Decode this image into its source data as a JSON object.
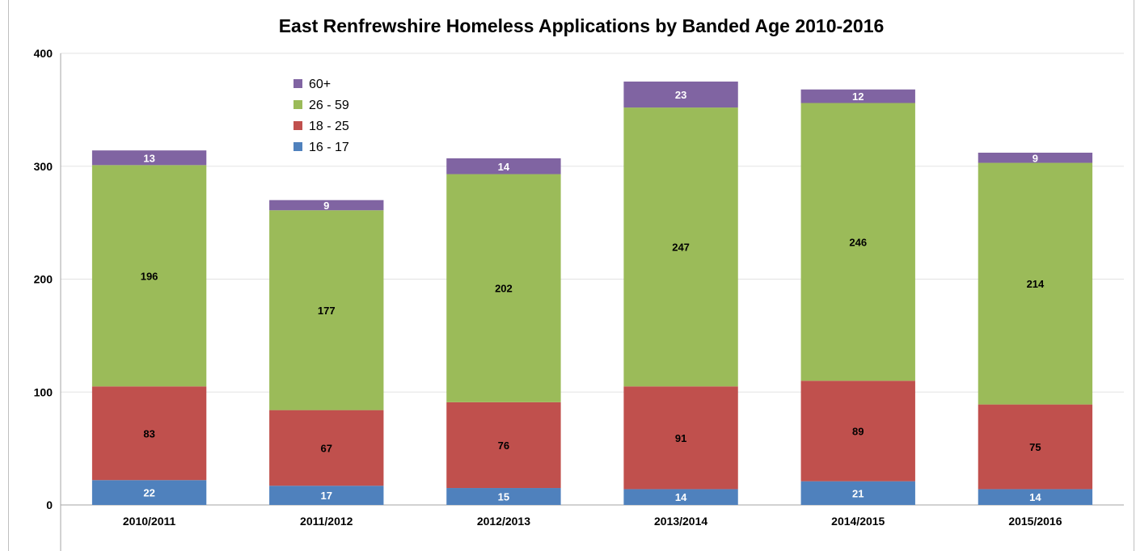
{
  "chart_data": {
    "type": "bar",
    "stacked": true,
    "title": "East Renfrewshire Homeless Applications by Banded Age 2010-2016",
    "xlabel": "",
    "ylabel": "",
    "ylim": [
      0,
      400
    ],
    "y_ticks": [
      0,
      100,
      200,
      300,
      400
    ],
    "grid": true,
    "legend_position": "top-left",
    "categories": [
      "2010/2011",
      "2011/2012",
      "2012/2013",
      "2013/2014",
      "2014/2015",
      "2015/2016"
    ],
    "series": [
      {
        "name": "16 - 17",
        "color": "#4f81bd",
        "label_color": "#ffffff",
        "values": [
          22,
          17,
          15,
          14,
          21,
          14
        ]
      },
      {
        "name": "18 - 25",
        "color": "#c0504d",
        "label_color": "#000000",
        "values": [
          83,
          67,
          76,
          91,
          89,
          75
        ]
      },
      {
        "name": "26 - 59",
        "color": "#9bbb59",
        "label_color": "#000000",
        "values": [
          196,
          177,
          202,
          247,
          246,
          214
        ]
      },
      {
        "name": "60+",
        "color": "#8064a2",
        "label_color": "#ffffff",
        "values": [
          13,
          9,
          14,
          23,
          12,
          9
        ]
      }
    ]
  }
}
